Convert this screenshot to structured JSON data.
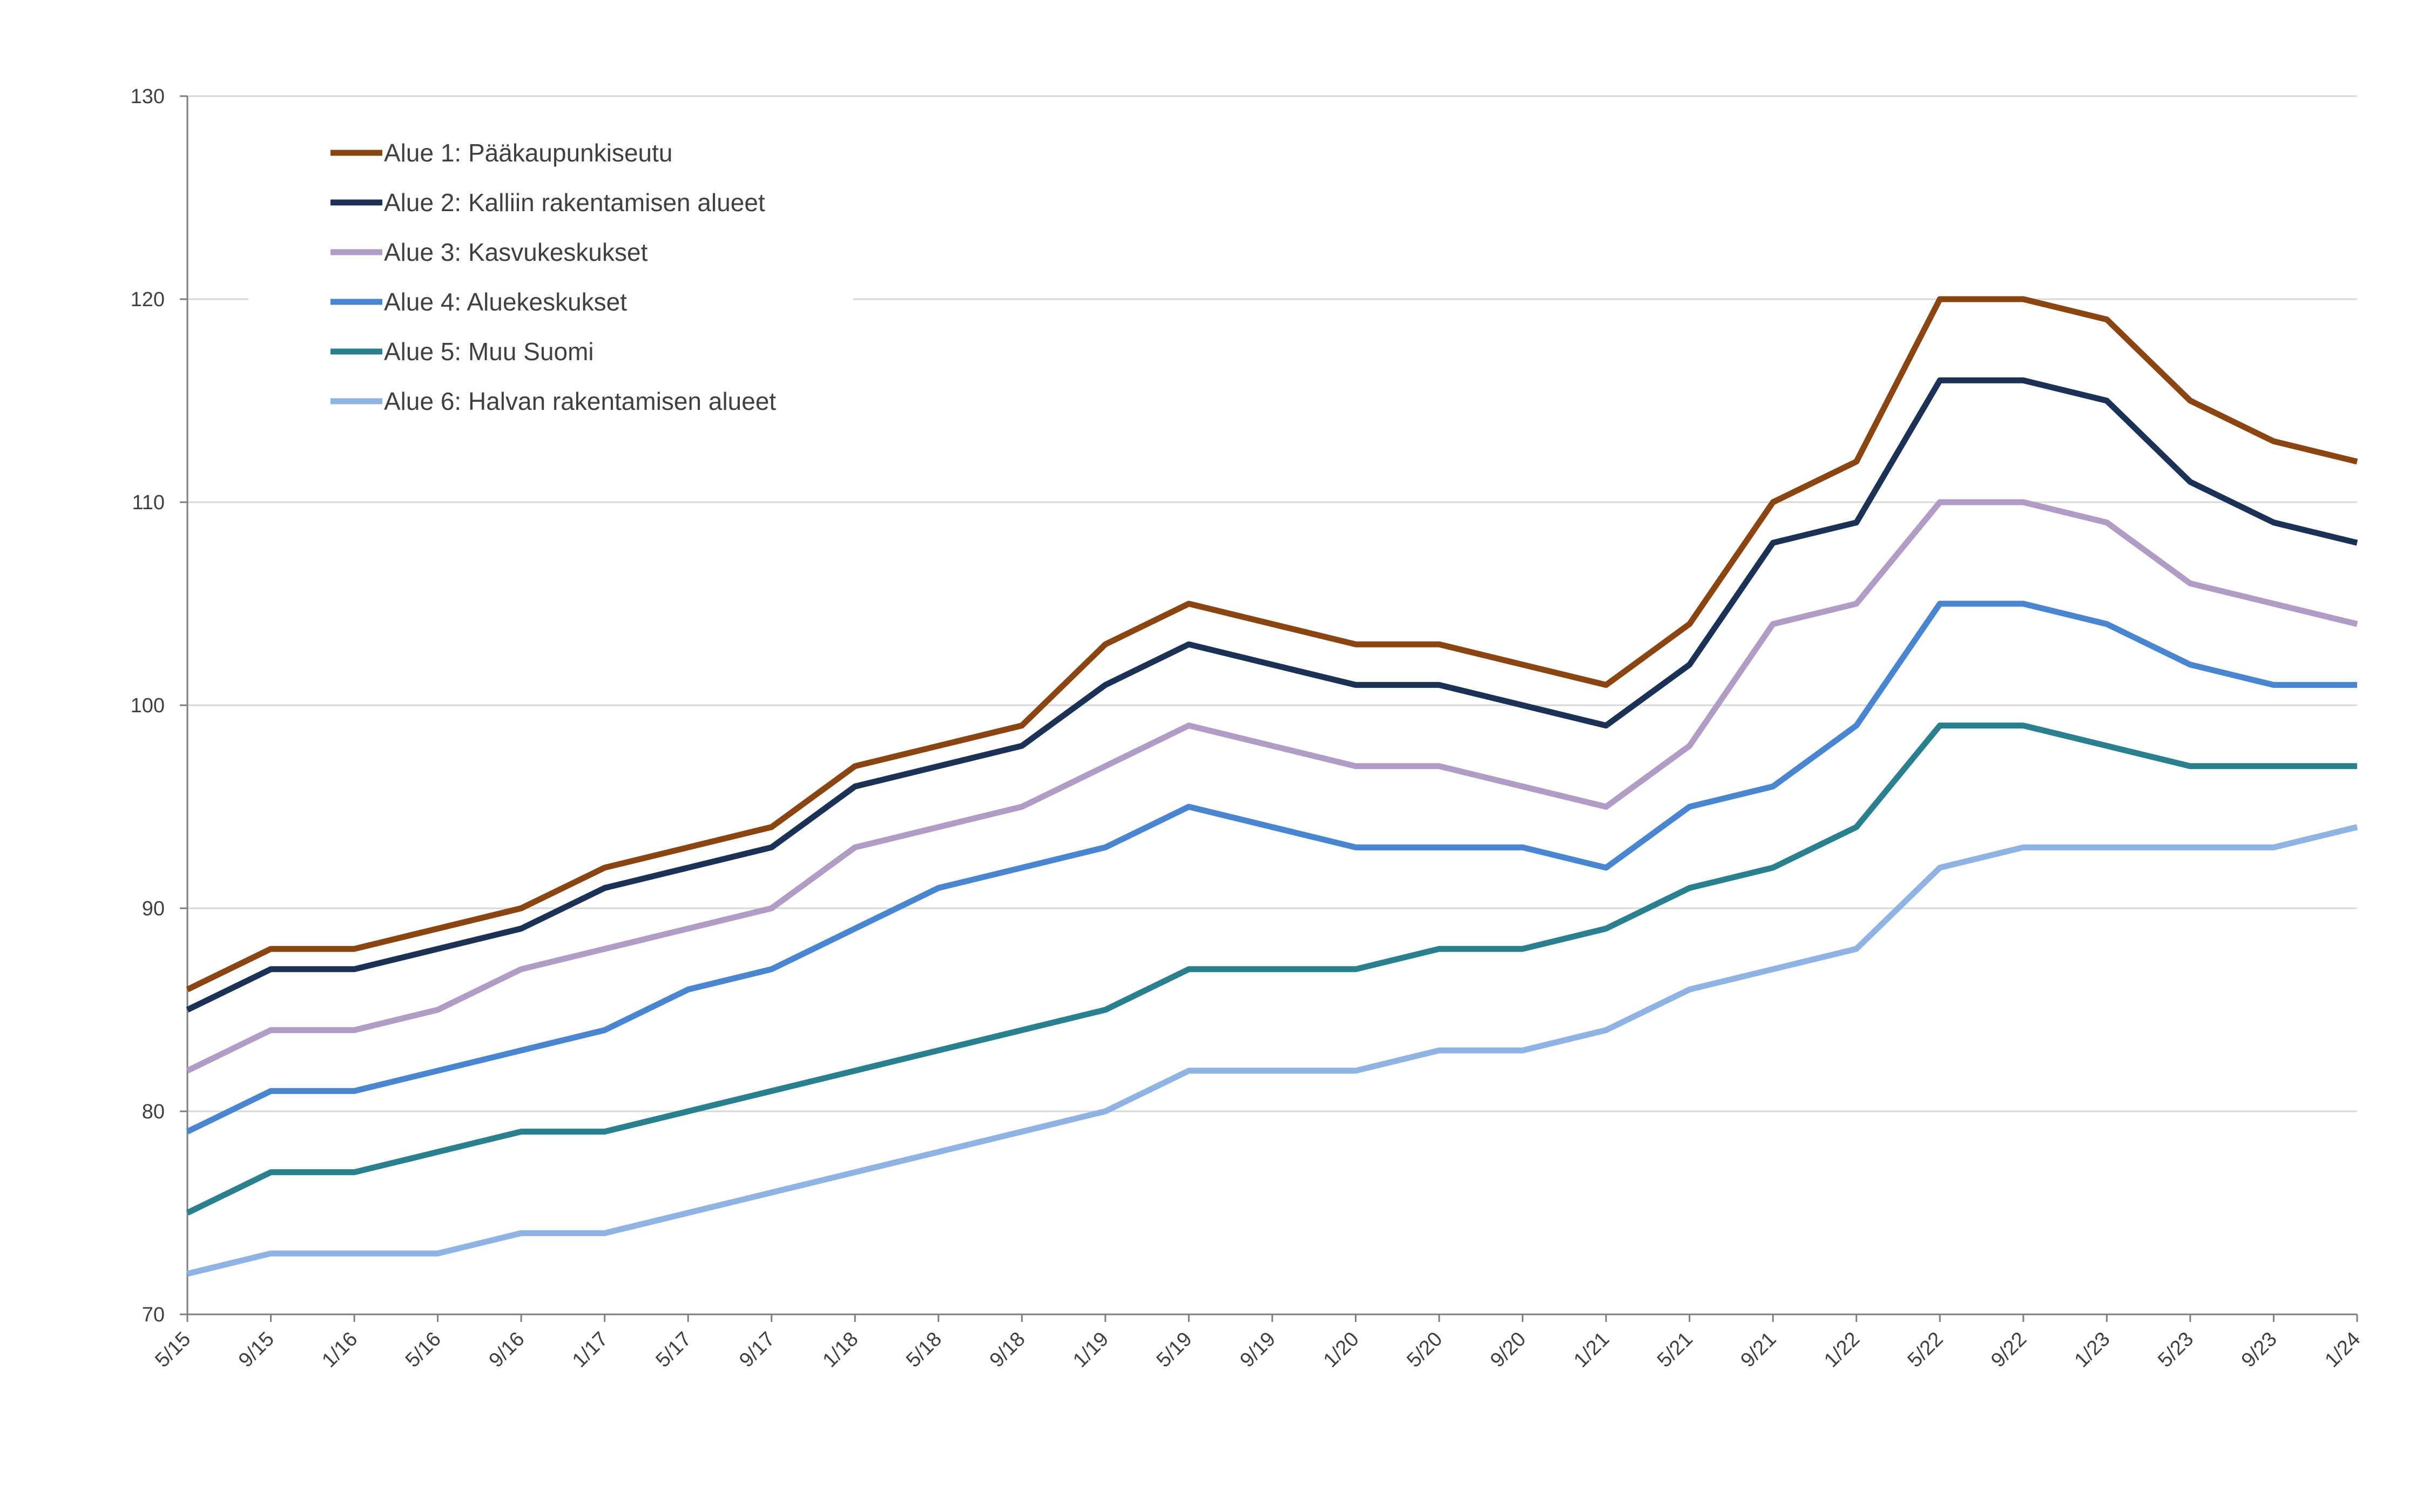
{
  "chart_data": {
    "type": "line",
    "title": "",
    "xlabel": "",
    "ylabel": "",
    "ylim": [
      70,
      130
    ],
    "yticks": [
      70,
      80,
      90,
      100,
      110,
      120,
      130
    ],
    "grid": true,
    "legend_position": "top-left",
    "x": [
      "5/15",
      "9/15",
      "1/16",
      "5/16",
      "9/16",
      "1/17",
      "5/17",
      "9/17",
      "1/18",
      "5/18",
      "9/18",
      "1/19",
      "5/19",
      "9/19",
      "1/20",
      "5/20",
      "9/20",
      "1/21",
      "5/21",
      "9/21",
      "1/22",
      "5/22",
      "9/22",
      "1/23",
      "5/23",
      "9/23",
      "1/24"
    ],
    "series": [
      {
        "name": "Alue 1: Pääkaupunkiseutu",
        "color": "#8B4513",
        "values": [
          86,
          88,
          88,
          89,
          90,
          92,
          93,
          94,
          97,
          98,
          99,
          103,
          105,
          104,
          103,
          103,
          102,
          101,
          104,
          110,
          112,
          120,
          120,
          119,
          115,
          113,
          112
        ]
      },
      {
        "name": "Alue 2: Kalliin rakentamisen alueet",
        "color": "#1B3256",
        "values": [
          85,
          87,
          87,
          88,
          89,
          91,
          92,
          93,
          96,
          97,
          98,
          101,
          103,
          102,
          101,
          101,
          100,
          99,
          102,
          108,
          109,
          116,
          116,
          115,
          111,
          109,
          108
        ]
      },
      {
        "name": "Alue 3: Kasvukeskukset",
        "color": "#B09CC4",
        "values": [
          82,
          84,
          84,
          85,
          87,
          88,
          89,
          90,
          93,
          94,
          95,
          97,
          99,
          98,
          97,
          97,
          96,
          95,
          98,
          104,
          105,
          110,
          110,
          109,
          106,
          105,
          104
        ]
      },
      {
        "name": "Alue 4: Aluekeskukset",
        "color": "#4A86D0",
        "values": [
          79,
          81,
          81,
          82,
          83,
          84,
          86,
          87,
          89,
          91,
          92,
          93,
          95,
          94,
          93,
          93,
          93,
          92,
          95,
          96,
          99,
          105,
          105,
          104,
          102,
          101,
          101
        ]
      },
      {
        "name": "Alue 5: Muu Suomi",
        "color": "#2B8090",
        "values": [
          75,
          77,
          77,
          78,
          79,
          79,
          80,
          81,
          82,
          83,
          84,
          85,
          87,
          87,
          87,
          88,
          88,
          89,
          91,
          92,
          94,
          99,
          99,
          98,
          97,
          97,
          97
        ]
      },
      {
        "name": "Alue 6: Halvan rakentamisen alueet",
        "color": "#8FB3E3",
        "values": [
          72,
          73,
          73,
          73,
          74,
          74,
          75,
          76,
          77,
          78,
          79,
          80,
          82,
          82,
          82,
          83,
          83,
          84,
          86,
          87,
          88,
          92,
          93,
          93,
          93,
          93,
          94
        ]
      }
    ]
  }
}
